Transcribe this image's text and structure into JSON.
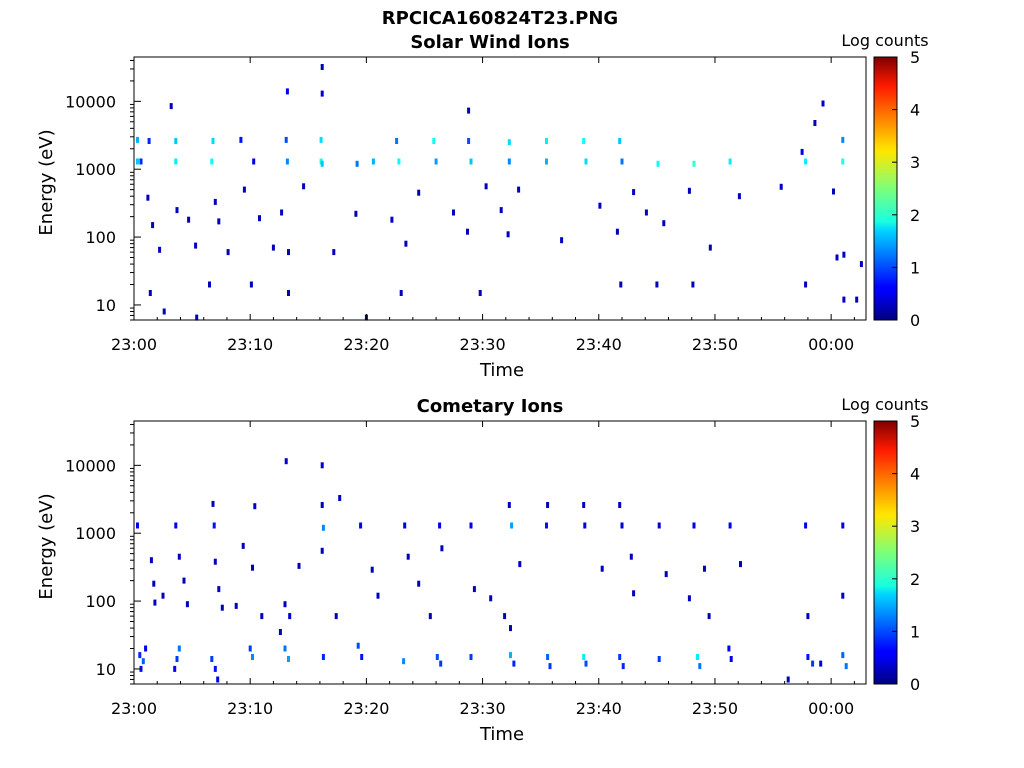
{
  "figure": {
    "title": "RPCICA160824T23.PNG"
  },
  "chart_data": [
    {
      "type": "heatmap",
      "title": "Solar Wind Ions",
      "xlabel": "Time",
      "ylabel": "Energy (eV)",
      "x_ticks": [
        "23:00",
        "23:10",
        "23:20",
        "23:30",
        "23:40",
        "23:50",
        "00:00"
      ],
      "x_range_minutes": [
        0,
        63
      ],
      "y_scale": "log",
      "y_ticks": [
        10,
        100,
        1000,
        10000
      ],
      "ylim": [
        6,
        45000
      ],
      "colorbar": {
        "label": "Log counts",
        "range": [
          0,
          5
        ],
        "ticks": [
          0,
          1,
          2,
          3,
          4,
          5
        ]
      },
      "cells": [
        [
          0.3,
          2700,
          1.5
        ],
        [
          0.3,
          1300,
          1.6
        ],
        [
          0.6,
          1300,
          0.8
        ],
        [
          1.3,
          2600,
          0.8
        ],
        [
          3.6,
          2600,
          1.6
        ],
        [
          3.6,
          1300,
          1.8
        ],
        [
          6.8,
          2600,
          1.7
        ],
        [
          6.7,
          1300,
          1.9
        ],
        [
          9.2,
          2700,
          0.7
        ],
        [
          10.3,
          1300,
          0.5
        ],
        [
          13.1,
          2700,
          1.0
        ],
        [
          13.2,
          1300,
          1.3
        ],
        [
          16.1,
          2700,
          1.7
        ],
        [
          16.1,
          1300,
          2.0
        ],
        [
          16.2,
          1200,
          1.6
        ],
        [
          19.2,
          1200,
          1.2
        ],
        [
          20.6,
          1300,
          1.5
        ],
        [
          22.6,
          2600,
          1.2
        ],
        [
          22.8,
          1300,
          1.9
        ],
        [
          25.8,
          2600,
          1.9
        ],
        [
          26.0,
          1300,
          1.4
        ],
        [
          28.8,
          2600,
          1.0
        ],
        [
          29.0,
          1300,
          1.6
        ],
        [
          32.3,
          2500,
          1.7
        ],
        [
          32.3,
          1300,
          1.3
        ],
        [
          35.5,
          2600,
          1.8
        ],
        [
          35.5,
          1300,
          1.5
        ],
        [
          38.7,
          2600,
          1.9
        ],
        [
          38.9,
          1300,
          1.7
        ],
        [
          41.8,
          2600,
          1.6
        ],
        [
          42.0,
          1300,
          1.2
        ],
        [
          45.1,
          1200,
          1.9
        ],
        [
          48.2,
          1200,
          2.1
        ],
        [
          51.3,
          1300,
          1.8
        ],
        [
          57.5,
          1800,
          0.5
        ],
        [
          57.8,
          1300,
          1.8
        ],
        [
          61.0,
          1300,
          2.0
        ],
        [
          61.0,
          2700,
          1.3
        ],
        [
          13.2,
          14000,
          0.5
        ],
        [
          16.2,
          32000,
          0.3
        ],
        [
          16.2,
          13000,
          0.4
        ],
        [
          3.2,
          8500,
          0.3
        ],
        [
          59.3,
          9300,
          0.3
        ],
        [
          58.6,
          4800,
          0.3
        ],
        [
          28.8,
          7300,
          0.3
        ],
        [
          1.4,
          15,
          0.3
        ],
        [
          2.6,
          8,
          0.3
        ],
        [
          5.4,
          6.5,
          0.3
        ],
        [
          6.5,
          20,
          0.3
        ],
        [
          10.1,
          20,
          0.3
        ],
        [
          13.3,
          15,
          0.3
        ],
        [
          20.0,
          6.5,
          0.3
        ],
        [
          23.0,
          15,
          0.3
        ],
        [
          29.8,
          15,
          0.3
        ],
        [
          41.9,
          20,
          0.3
        ],
        [
          45.0,
          20,
          0.3
        ],
        [
          48.1,
          20,
          0.3
        ],
        [
          57.8,
          20,
          0.3
        ],
        [
          61.1,
          12,
          0.3
        ],
        [
          62.2,
          12,
          0.3
        ],
        [
          1.2,
          380,
          0.3
        ],
        [
          1.6,
          150,
          0.3
        ],
        [
          2.2,
          65,
          0.3
        ],
        [
          3.7,
          250,
          0.3
        ],
        [
          4.7,
          180,
          0.3
        ],
        [
          5.3,
          75,
          0.3
        ],
        [
          7.0,
          330,
          0.3
        ],
        [
          7.3,
          170,
          0.3
        ],
        [
          8.1,
          60,
          0.3
        ],
        [
          9.5,
          500,
          0.3
        ],
        [
          10.8,
          190,
          0.3
        ],
        [
          12.0,
          70,
          0.3
        ],
        [
          12.7,
          230,
          0.3
        ],
        [
          13.3,
          60,
          0.3
        ],
        [
          14.6,
          560,
          0.3
        ],
        [
          17.2,
          60,
          0.3
        ],
        [
          19.1,
          220,
          0.3
        ],
        [
          22.2,
          180,
          0.3
        ],
        [
          23.4,
          80,
          0.3
        ],
        [
          24.5,
          450,
          0.3
        ],
        [
          27.5,
          230,
          0.3
        ],
        [
          28.7,
          120,
          0.3
        ],
        [
          30.3,
          560,
          0.3
        ],
        [
          31.6,
          250,
          0.3
        ],
        [
          32.2,
          110,
          0.3
        ],
        [
          33.1,
          500,
          0.3
        ],
        [
          36.8,
          90,
          0.3
        ],
        [
          40.1,
          290,
          0.3
        ],
        [
          41.6,
          120,
          0.3
        ],
        [
          43.0,
          460,
          0.3
        ],
        [
          44.1,
          230,
          0.3
        ],
        [
          45.6,
          160,
          0.3
        ],
        [
          47.8,
          480,
          0.3
        ],
        [
          49.6,
          70,
          0.3
        ],
        [
          52.1,
          400,
          0.3
        ],
        [
          55.7,
          550,
          0.3
        ],
        [
          60.2,
          470,
          0.3
        ],
        [
          60.5,
          50,
          0.3
        ],
        [
          62.6,
          40,
          0.3
        ],
        [
          61.1,
          55,
          0.3
        ]
      ]
    },
    {
      "type": "heatmap",
      "title": "Cometary Ions",
      "xlabel": "Time",
      "ylabel": "Energy (eV)",
      "x_ticks": [
        "23:00",
        "23:10",
        "23:20",
        "23:30",
        "23:40",
        "23:50",
        "00:00"
      ],
      "x_range_minutes": [
        0,
        63
      ],
      "y_scale": "log",
      "y_ticks": [
        10,
        100,
        1000,
        10000
      ],
      "ylim": [
        6,
        45000
      ],
      "colorbar": {
        "label": "Log counts",
        "range": [
          0,
          5
        ],
        "ticks": [
          0,
          1,
          2,
          3,
          4,
          5
        ]
      },
      "cells": [
        [
          0.5,
          16,
          0.8
        ],
        [
          0.8,
          13,
          1.1
        ],
        [
          0.6,
          10,
          0.7
        ],
        [
          1.0,
          20,
          0.5
        ],
        [
          3.7,
          14,
          0.9
        ],
        [
          3.9,
          20,
          1.2
        ],
        [
          3.5,
          10,
          0.6
        ],
        [
          6.7,
          14,
          0.9
        ],
        [
          7.0,
          10,
          0.7
        ],
        [
          7.2,
          7,
          0.5
        ],
        [
          10.0,
          20,
          0.9
        ],
        [
          10.2,
          15,
          1.3
        ],
        [
          13.0,
          20,
          1.2
        ],
        [
          13.3,
          14,
          1.4
        ],
        [
          16.3,
          15,
          0.8
        ],
        [
          19.3,
          22,
          1.0
        ],
        [
          19.6,
          15,
          0.7
        ],
        [
          23.2,
          13,
          1.3
        ],
        [
          26.1,
          15,
          1.0
        ],
        [
          26.4,
          12,
          0.9
        ],
        [
          29.0,
          15,
          0.9
        ],
        [
          32.4,
          16,
          1.5
        ],
        [
          32.7,
          12,
          0.8
        ],
        [
          35.6,
          15,
          1.1
        ],
        [
          35.8,
          11,
          0.9
        ],
        [
          38.7,
          15,
          1.8
        ],
        [
          38.9,
          12,
          1.0
        ],
        [
          41.8,
          15,
          0.9
        ],
        [
          42.1,
          11,
          0.8
        ],
        [
          45.2,
          14,
          0.9
        ],
        [
          48.5,
          15,
          1.8
        ],
        [
          48.7,
          11,
          1.2
        ],
        [
          51.2,
          20,
          0.6
        ],
        [
          51.4,
          14,
          0.5
        ],
        [
          58.0,
          15,
          0.7
        ],
        [
          58.4,
          12,
          0.9
        ],
        [
          61.0,
          16,
          1.1
        ],
        [
          61.3,
          11,
          1.2
        ],
        [
          59.1,
          12,
          0.5
        ],
        [
          56.3,
          7,
          0.3
        ],
        [
          13.1,
          11500,
          0.4
        ],
        [
          16.2,
          10000,
          0.4
        ],
        [
          6.8,
          2700,
          0.3
        ],
        [
          10.4,
          2500,
          0.3
        ],
        [
          16.2,
          2600,
          0.3
        ],
        [
          17.7,
          3300,
          0.3
        ],
        [
          32.3,
          2600,
          0.3
        ],
        [
          35.6,
          2600,
          0.3
        ],
        [
          38.7,
          2600,
          0.3
        ],
        [
          41.8,
          2600,
          0.3
        ],
        [
          0.3,
          1300,
          0.6
        ],
        [
          3.6,
          1300,
          0.5
        ],
        [
          6.9,
          1300,
          0.7
        ],
        [
          16.3,
          1200,
          1.3
        ],
        [
          19.5,
          1300,
          0.6
        ],
        [
          23.3,
          1300,
          0.5
        ],
        [
          26.3,
          1300,
          0.5
        ],
        [
          29.0,
          1300,
          0.5
        ],
        [
          32.5,
          1300,
          1.4
        ],
        [
          35.5,
          1300,
          0.7
        ],
        [
          38.8,
          1300,
          0.5
        ],
        [
          42.0,
          1300,
          0.4
        ],
        [
          45.2,
          1300,
          0.4
        ],
        [
          48.2,
          1300,
          0.5
        ],
        [
          51.3,
          1300,
          0.5
        ],
        [
          57.8,
          1300,
          0.5
        ],
        [
          61.0,
          1300,
          0.5
        ],
        [
          1.5,
          400,
          0.3
        ],
        [
          1.7,
          180,
          0.3
        ],
        [
          1.8,
          95,
          0.3
        ],
        [
          3.9,
          450,
          0.3
        ],
        [
          4.3,
          200,
          0.3
        ],
        [
          4.6,
          90,
          0.3
        ],
        [
          7.0,
          380,
          0.3
        ],
        [
          7.3,
          150,
          0.3
        ],
        [
          7.6,
          80,
          0.3
        ],
        [
          9.4,
          650,
          0.3
        ],
        [
          10.2,
          310,
          0.3
        ],
        [
          11.0,
          60,
          0.3
        ],
        [
          13.0,
          90,
          0.3
        ],
        [
          13.4,
          60,
          0.3
        ],
        [
          14.2,
          330,
          0.3
        ],
        [
          16.2,
          550,
          0.3
        ],
        [
          17.4,
          60,
          0.3
        ],
        [
          20.5,
          290,
          0.3
        ],
        [
          21.0,
          120,
          0.3
        ],
        [
          23.6,
          450,
          0.3
        ],
        [
          24.5,
          180,
          0.3
        ],
        [
          25.5,
          60,
          0.3
        ],
        [
          26.5,
          600,
          0.3
        ],
        [
          29.3,
          150,
          0.3
        ],
        [
          30.7,
          110,
          0.3
        ],
        [
          31.9,
          60,
          0.3
        ],
        [
          32.4,
          40,
          0.3
        ],
        [
          33.2,
          350,
          0.3
        ],
        [
          40.3,
          300,
          0.3
        ],
        [
          42.8,
          450,
          0.3
        ],
        [
          43.0,
          130,
          0.3
        ],
        [
          45.8,
          250,
          0.3
        ],
        [
          47.8,
          110,
          0.3
        ],
        [
          49.1,
          300,
          0.3
        ],
        [
          49.5,
          60,
          0.3
        ],
        [
          52.2,
          350,
          0.3
        ],
        [
          58.0,
          60,
          0.3
        ],
        [
          61.0,
          120,
          0.3
        ],
        [
          12.6,
          35,
          0.3
        ],
        [
          8.8,
          85,
          0.3
        ],
        [
          2.5,
          120,
          0.3
        ]
      ]
    }
  ]
}
